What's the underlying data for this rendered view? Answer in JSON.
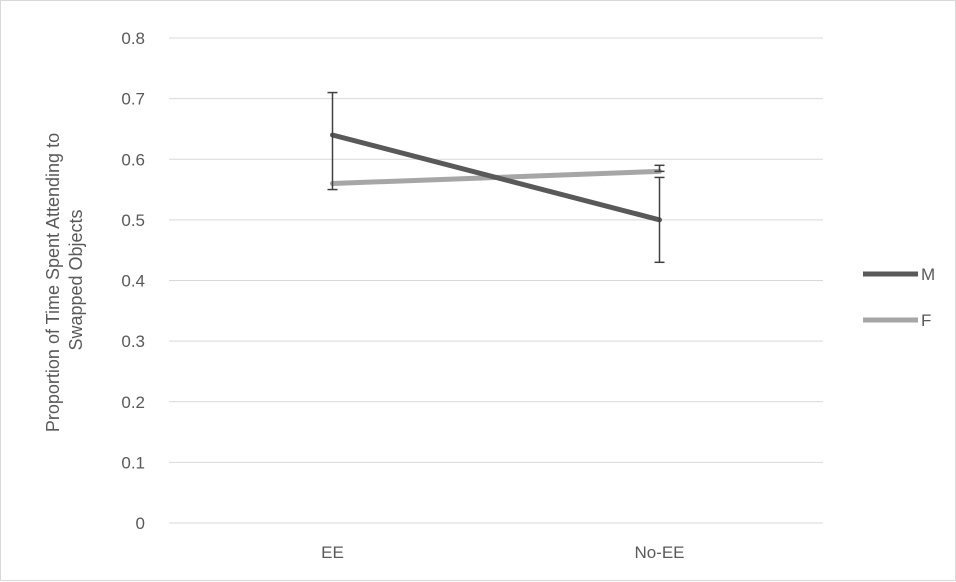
{
  "chart_data": {
    "type": "line",
    "title": "",
    "xlabel": "",
    "ylabel": [
      "Proportion of Time Spent Attending to",
      "Swapped Objects"
    ],
    "categories": [
      "EE",
      "No-EE"
    ],
    "ylim": [
      0,
      0.8
    ],
    "yticks": [
      "0",
      "0.1",
      "0.2",
      "0.3",
      "0.4",
      "0.5",
      "0.6",
      "0.7",
      "0.8"
    ],
    "grid": true,
    "legend_position": "right",
    "series": [
      {
        "name": "M",
        "values": [
          0.64,
          0.5
        ],
        "error_low": [
          0.55,
          0.43
        ],
        "error_high": [
          0.71,
          0.57
        ],
        "color": "#595959"
      },
      {
        "name": "F",
        "values": [
          0.56,
          0.58
        ],
        "error_low": [
          0.56,
          0.58
        ],
        "error_high": [
          0.56,
          0.59
        ],
        "color": "#a6a6a6"
      }
    ]
  }
}
